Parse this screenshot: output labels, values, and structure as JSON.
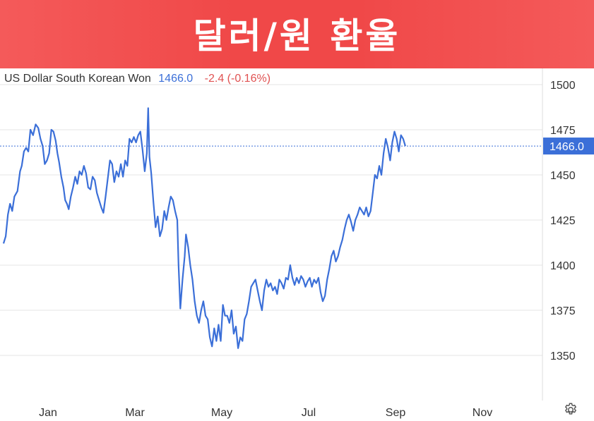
{
  "banner": {
    "title": "달러/원 환율"
  },
  "header": {
    "instrument": "US Dollar South Korean Won",
    "price": "1466.0",
    "change": "-2.4 (-0.16%)"
  },
  "colors": {
    "banner": "#f04848",
    "line": "#3b6fd8",
    "change": "#e05252",
    "price_tag": "#3b6fd8",
    "grid": "#e6e6e6"
  },
  "icons": {
    "settings": "gear-icon"
  },
  "chart_data": {
    "type": "line",
    "title": "",
    "xlabel": "",
    "ylabel": "",
    "ylim": [
      1325,
      1509
    ],
    "y_ticks": [
      1350,
      1375,
      1400,
      1425,
      1450,
      1475,
      1500
    ],
    "x_ticks": [
      "Jan",
      "Mar",
      "May",
      "Jul",
      "Sep",
      "Nov"
    ],
    "x_tick_months": [
      1,
      3,
      5,
      7,
      9,
      11
    ],
    "grid": "horizontal",
    "last_value": 1466.0,
    "last_value_label": "1466.0",
    "series": [
      {
        "points": [
          [
            0.0,
            1412
          ],
          [
            0.05,
            1416
          ],
          [
            0.1,
            1428
          ],
          [
            0.15,
            1434
          ],
          [
            0.2,
            1430
          ],
          [
            0.25,
            1438
          ],
          [
            0.32,
            1441
          ],
          [
            0.38,
            1452
          ],
          [
            0.42,
            1455
          ],
          [
            0.47,
            1463
          ],
          [
            0.52,
            1465
          ],
          [
            0.57,
            1463
          ],
          [
            0.62,
            1475
          ],
          [
            0.68,
            1472
          ],
          [
            0.74,
            1478
          ],
          [
            0.8,
            1476
          ],
          [
            0.85,
            1470
          ],
          [
            0.9,
            1466
          ],
          [
            0.95,
            1456
          ],
          [
            1.0,
            1458
          ],
          [
            1.05,
            1462
          ],
          [
            1.1,
            1475
          ],
          [
            1.15,
            1474
          ],
          [
            1.2,
            1469
          ],
          [
            1.24,
            1462
          ],
          [
            1.28,
            1457
          ],
          [
            1.33,
            1449
          ],
          [
            1.38,
            1443
          ],
          [
            1.42,
            1436
          ],
          [
            1.46,
            1434
          ],
          [
            1.5,
            1431
          ],
          [
            1.55,
            1438
          ],
          [
            1.6,
            1443
          ],
          [
            1.65,
            1449
          ],
          [
            1.7,
            1445
          ],
          [
            1.75,
            1452
          ],
          [
            1.8,
            1450
          ],
          [
            1.85,
            1455
          ],
          [
            1.9,
            1451
          ],
          [
            1.95,
            1443
          ],
          [
            2.0,
            1442
          ],
          [
            2.05,
            1449
          ],
          [
            2.1,
            1447
          ],
          [
            2.15,
            1440
          ],
          [
            2.2,
            1436
          ],
          [
            2.25,
            1432
          ],
          [
            2.3,
            1429
          ],
          [
            2.35,
            1438
          ],
          [
            2.4,
            1448
          ],
          [
            2.45,
            1458
          ],
          [
            2.5,
            1456
          ],
          [
            2.55,
            1446
          ],
          [
            2.6,
            1452
          ],
          [
            2.65,
            1449
          ],
          [
            2.7,
            1456
          ],
          [
            2.75,
            1449
          ],
          [
            2.8,
            1458
          ],
          [
            2.85,
            1455
          ],
          [
            2.9,
            1470
          ],
          [
            2.95,
            1468
          ],
          [
            3.0,
            1471
          ],
          [
            3.05,
            1468
          ],
          [
            3.1,
            1472
          ],
          [
            3.15,
            1474
          ],
          [
            3.2,
            1464
          ],
          [
            3.25,
            1452
          ],
          [
            3.3,
            1462
          ],
          [
            3.33,
            1487
          ],
          [
            3.36,
            1460
          ],
          [
            3.4,
            1451
          ],
          [
            3.45,
            1435
          ],
          [
            3.5,
            1421
          ],
          [
            3.55,
            1427
          ],
          [
            3.6,
            1416
          ],
          [
            3.65,
            1420
          ],
          [
            3.7,
            1430
          ],
          [
            3.75,
            1425
          ],
          [
            3.8,
            1432
          ],
          [
            3.85,
            1438
          ],
          [
            3.9,
            1436
          ],
          [
            3.95,
            1430
          ],
          [
            4.0,
            1425
          ],
          [
            4.03,
            1400
          ],
          [
            4.07,
            1376
          ],
          [
            4.12,
            1392
          ],
          [
            4.17,
            1405
          ],
          [
            4.2,
            1417
          ],
          [
            4.25,
            1410
          ],
          [
            4.3,
            1400
          ],
          [
            4.35,
            1392
          ],
          [
            4.4,
            1380
          ],
          [
            4.45,
            1372
          ],
          [
            4.5,
            1368
          ],
          [
            4.55,
            1375
          ],
          [
            4.6,
            1380
          ],
          [
            4.65,
            1372
          ],
          [
            4.7,
            1370
          ],
          [
            4.75,
            1360
          ],
          [
            4.8,
            1355
          ],
          [
            4.85,
            1365
          ],
          [
            4.9,
            1358
          ],
          [
            4.95,
            1367
          ],
          [
            5.0,
            1358
          ],
          [
            5.05,
            1378
          ],
          [
            5.1,
            1372
          ],
          [
            5.15,
            1372
          ],
          [
            5.2,
            1368
          ],
          [
            5.25,
            1375
          ],
          [
            5.3,
            1362
          ],
          [
            5.35,
            1366
          ],
          [
            5.4,
            1354
          ],
          [
            5.45,
            1360
          ],
          [
            5.5,
            1358
          ],
          [
            5.55,
            1370
          ],
          [
            5.6,
            1373
          ],
          [
            5.65,
            1380
          ],
          [
            5.7,
            1388
          ],
          [
            5.75,
            1390
          ],
          [
            5.8,
            1392
          ],
          [
            5.85,
            1386
          ],
          [
            5.9,
            1380
          ],
          [
            5.95,
            1375
          ],
          [
            6.0,
            1386
          ],
          [
            6.05,
            1392
          ],
          [
            6.1,
            1388
          ],
          [
            6.15,
            1390
          ],
          [
            6.2,
            1386
          ],
          [
            6.25,
            1388
          ],
          [
            6.3,
            1384
          ],
          [
            6.35,
            1392
          ],
          [
            6.4,
            1390
          ],
          [
            6.45,
            1387
          ],
          [
            6.5,
            1393
          ],
          [
            6.55,
            1392
          ],
          [
            6.6,
            1400
          ],
          [
            6.65,
            1393
          ],
          [
            6.7,
            1389
          ],
          [
            6.75,
            1393
          ],
          [
            6.8,
            1390
          ],
          [
            6.85,
            1394
          ],
          [
            6.9,
            1392
          ],
          [
            6.95,
            1388
          ],
          [
            7.0,
            1391
          ],
          [
            7.05,
            1393
          ],
          [
            7.1,
            1388
          ],
          [
            7.15,
            1392
          ],
          [
            7.2,
            1390
          ],
          [
            7.25,
            1393
          ],
          [
            7.3,
            1385
          ],
          [
            7.35,
            1380
          ],
          [
            7.4,
            1383
          ],
          [
            7.45,
            1392
          ],
          [
            7.5,
            1398
          ],
          [
            7.55,
            1405
          ],
          [
            7.6,
            1408
          ],
          [
            7.65,
            1402
          ],
          [
            7.7,
            1405
          ],
          [
            7.75,
            1410
          ],
          [
            7.8,
            1414
          ],
          [
            7.85,
            1420
          ],
          [
            7.9,
            1425
          ],
          [
            7.95,
            1428
          ],
          [
            8.0,
            1424
          ],
          [
            8.05,
            1419
          ],
          [
            8.1,
            1425
          ],
          [
            8.15,
            1428
          ],
          [
            8.2,
            1432
          ],
          [
            8.25,
            1430
          ],
          [
            8.3,
            1428
          ],
          [
            8.35,
            1432
          ],
          [
            8.4,
            1427
          ],
          [
            8.45,
            1430
          ],
          [
            8.5,
            1440
          ],
          [
            8.55,
            1450
          ],
          [
            8.6,
            1448
          ],
          [
            8.65,
            1455
          ],
          [
            8.7,
            1450
          ],
          [
            8.75,
            1462
          ],
          [
            8.8,
            1470
          ],
          [
            8.85,
            1465
          ],
          [
            8.9,
            1458
          ],
          [
            8.95,
            1468
          ],
          [
            9.0,
            1474
          ],
          [
            9.05,
            1470
          ],
          [
            9.1,
            1463
          ],
          [
            9.15,
            1472
          ],
          [
            9.2,
            1470
          ],
          [
            9.25,
            1466
          ]
        ]
      }
    ]
  }
}
